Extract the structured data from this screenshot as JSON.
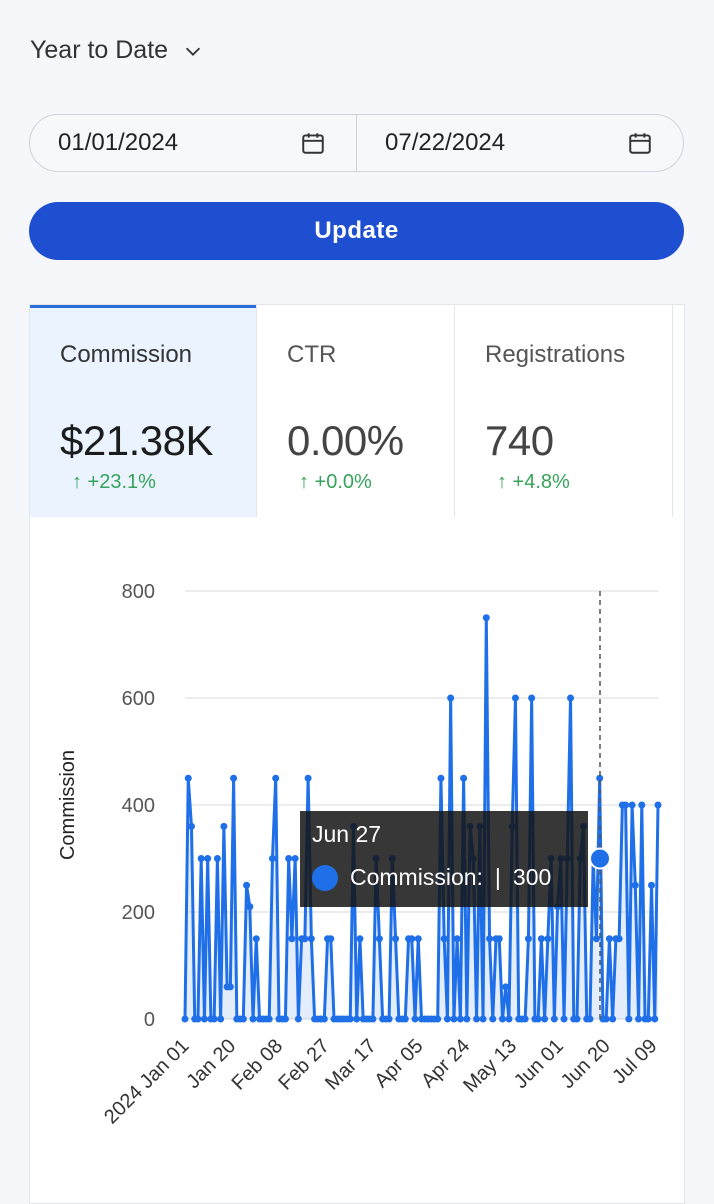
{
  "period": {
    "label": "Year to Date",
    "icon": "chevron-down-icon"
  },
  "date_range": {
    "start": "01/01/2024",
    "end": "07/22/2024",
    "icon": "calendar-icon"
  },
  "update_button": {
    "label": "Update",
    "color": "#1f4fd1"
  },
  "tabs": [
    {
      "label": "Commission",
      "value": "$21.38K",
      "change": "↑ +23.1%",
      "active": true
    },
    {
      "label": "CTR",
      "value": "0.00%",
      "change": "↑ +0.0%",
      "active": false
    },
    {
      "label": "Registrations",
      "value": "740",
      "change": "↑ +4.8%",
      "active": false
    }
  ],
  "tooltip": {
    "date": "Jun 27",
    "series": "Commission:",
    "separator": "|",
    "value": "300"
  },
  "chart_data": {
    "type": "line",
    "ylabel": "Commission",
    "ylim": [
      0,
      800
    ],
    "yticks": [
      0,
      200,
      400,
      600,
      800
    ],
    "grid": true,
    "x_start": "2024 Jan 01",
    "x_end": "Jul 22",
    "x_tick_labels": [
      "2024 Jan 01",
      "Jan 20",
      "Feb 08",
      "Feb 27",
      "Mar 17",
      "Apr 05",
      "Apr 24",
      "May 13",
      "Jun 01",
      "Jun 20",
      "Jul 09"
    ],
    "series": [
      {
        "name": "Commission",
        "color": "#1f6fe8",
        "values": [
          0,
          450,
          360,
          0,
          0,
          300,
          0,
          300,
          0,
          0,
          300,
          0,
          360,
          60,
          60,
          450,
          0,
          0,
          0,
          250,
          210,
          0,
          150,
          0,
          0,
          0,
          0,
          300,
          450,
          0,
          0,
          0,
          300,
          150,
          300,
          0,
          150,
          150,
          450,
          150,
          0,
          0,
          0,
          0,
          150,
          150,
          0,
          0,
          0,
          0,
          0,
          0,
          360,
          0,
          150,
          0,
          0,
          0,
          0,
          300,
          150,
          0,
          0,
          0,
          300,
          150,
          0,
          0,
          0,
          150,
          150,
          0,
          150,
          0,
          0,
          0,
          0,
          0,
          0,
          450,
          150,
          0,
          600,
          0,
          150,
          0,
          450,
          0,
          360,
          300,
          0,
          360,
          0,
          750,
          150,
          0,
          150,
          150,
          0,
          60,
          0,
          360,
          600,
          0,
          0,
          0,
          150,
          600,
          0,
          0,
          150,
          0,
          150,
          300,
          0,
          210,
          300,
          0,
          300,
          600,
          0,
          0,
          300,
          360,
          0,
          0,
          300,
          150,
          450,
          0,
          0,
          150,
          0,
          150,
          150,
          400,
          400,
          0,
          400,
          250,
          0,
          400,
          0,
          0,
          250,
          0,
          400
        ]
      }
    ],
    "highlight": {
      "date": "Jun 27",
      "value": 300
    }
  }
}
